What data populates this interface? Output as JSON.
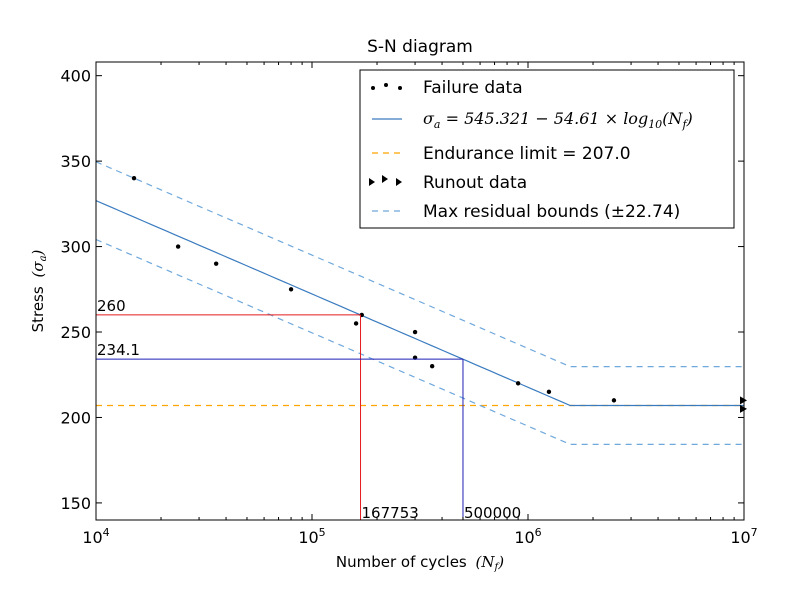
{
  "chart_data": {
    "type": "scatter",
    "title": "S-N diagram",
    "xlabel": "Number of cycles",
    "xlabel_math": "(N",
    "xlabel_math_sub": "f",
    "xlabel_math_close": ")",
    "ylabel": "Stress",
    "ylabel_math": "(σ",
    "ylabel_math_sub": "a",
    "ylabel_math_close": ")",
    "x_scale": "log",
    "xlim": [
      10000,
      10000000
    ],
    "ylim": [
      140,
      408
    ],
    "x_ticks": [
      {
        "value": 10000,
        "base": "10",
        "exp": "4"
      },
      {
        "value": 100000,
        "base": "10",
        "exp": "5"
      },
      {
        "value": 1000000,
        "base": "10",
        "exp": "6"
      },
      {
        "value": 10000000,
        "base": "10",
        "exp": "7"
      }
    ],
    "y_ticks": [
      150,
      200,
      250,
      300,
      350,
      400
    ],
    "grid": false,
    "legend_position": "top-right",
    "legend": [
      {
        "label": "Failure data",
        "style": "dots"
      },
      {
        "label": "σ",
        "sub": "a",
        "rest": " = 545.321 − 54.61 × log",
        "sub2": "10",
        "rest2": "(N",
        "sub3": "f",
        "end": ")",
        "style": "solid"
      },
      {
        "label": "Endurance limit = 207.0",
        "style": "dashed-orange"
      },
      {
        "label": "Runout data",
        "style": "triangles"
      },
      {
        "label": "Max residual bounds (±22.74)",
        "style": "dashed-blue"
      }
    ],
    "fit": {
      "intercept": 545.321,
      "slope": -54.61,
      "endurance_limit": 207.0,
      "residual": 22.74,
      "x_end": 10000000
    },
    "failure_data": [
      {
        "x": 15000,
        "y": 340
      },
      {
        "x": 24000,
        "y": 300
      },
      {
        "x": 36000,
        "y": 290
      },
      {
        "x": 80000,
        "y": 275
      },
      {
        "x": 160000,
        "y": 255
      },
      {
        "x": 170000,
        "y": 260
      },
      {
        "x": 300000,
        "y": 250
      },
      {
        "x": 300000,
        "y": 235
      },
      {
        "x": 360000,
        "y": 230
      },
      {
        "x": 900000,
        "y": 220
      },
      {
        "x": 1250000,
        "y": 215
      },
      {
        "x": 2500000,
        "y": 210
      }
    ],
    "runout_data": [
      {
        "x": 10000000,
        "y": 210
      },
      {
        "x": 10000000,
        "y": 205
      }
    ],
    "annotations": [
      {
        "label": "260",
        "x_label": "167753",
        "x": 167753,
        "y": 260,
        "color": "#e41a1c"
      },
      {
        "label": "234.1",
        "x_label": "500000",
        "x": 500000,
        "y": 234.1,
        "color": "#1f1fb4"
      }
    ],
    "colors": {
      "fit_line": "#3a7bbf",
      "bounds": "#6fa8dc",
      "endurance": "#ffa500",
      "points": "#000000"
    }
  }
}
